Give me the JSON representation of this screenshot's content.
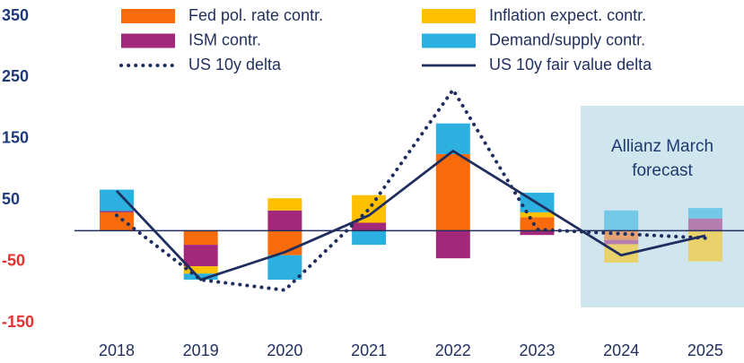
{
  "chart_data": {
    "type": "bar",
    "categories": [
      "2018",
      "2019",
      "2020",
      "2021",
      "2022",
      "2023",
      "2024",
      "2025"
    ],
    "series": [
      {
        "name": "Fed pol. rate contr.",
        "color": "#f76b0a",
        "values": [
          30,
          -23,
          -40,
          0,
          125,
          22,
          -15,
          0
        ]
      },
      {
        "name": "ISM contr.",
        "color": "#a3287a",
        "values": [
          2,
          -35,
          33,
          13,
          -45,
          -7,
          -7,
          20
        ]
      },
      {
        "name": "US 10y delta",
        "type": "line",
        "style": "dotted",
        "color": "#1f2e5e",
        "values": [
          25,
          -80,
          -97,
          35,
          230,
          2,
          -5,
          -12
        ]
      },
      {
        "name": "Inflation expect. contr.",
        "color": "#ffc000",
        "values": [
          0,
          -12,
          20,
          45,
          0,
          8,
          -30,
          -50
        ]
      },
      {
        "name": "Demand/supply contr.",
        "color": "#2bb0e0",
        "values": [
          35,
          -10,
          -40,
          -23,
          50,
          32,
          33,
          17
        ]
      },
      {
        "name": "US 10y fair value delta",
        "type": "line",
        "style": "solid",
        "color": "#1f2e5e",
        "values": [
          65,
          -80,
          -35,
          25,
          130,
          45,
          -40,
          -8
        ]
      }
    ],
    "ylim": [
      -150,
      350
    ],
    "yticks": [
      350,
      250,
      150,
      50,
      -50,
      -150
    ],
    "tick_color": "#1f3a7a",
    "negative_tick_color": "#e83030",
    "annotation": "Allianz March forecast"
  }
}
